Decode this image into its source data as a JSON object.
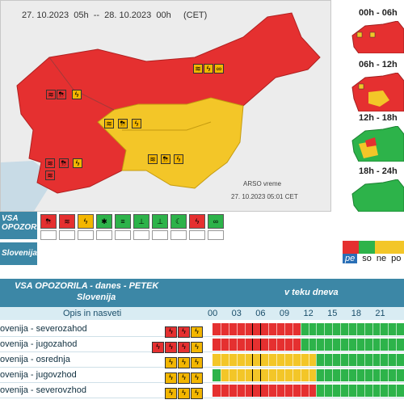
{
  "map": {
    "range_text": "27. 10.2023  05h  --  28. 10.2023  00h     (CET)",
    "credit": "ARSO vreme",
    "timestamp": "27. 10.2023  05:01  CET",
    "colors": {
      "red": "#e53030",
      "yellow": "#f3c628",
      "green": "#2db34a",
      "sea": "#c8dbe6"
    }
  },
  "mini_maps": [
    {
      "label": "00h - 06h",
      "fill": "red"
    },
    {
      "label": "06h - 12h",
      "fill": "red"
    },
    {
      "label": "12h - 18h",
      "fill": "mixed"
    },
    {
      "label": "18h - 24h",
      "fill": "green"
    }
  ],
  "legend": {
    "vsa_label": "VSA OPOZORILA",
    "region_label": "Slovenija",
    "icons": [
      {
        "name": "thunderstorm-icon",
        "color": "red",
        "glyph": "⛈"
      },
      {
        "name": "wind-icon",
        "color": "red",
        "glyph": "≋"
      },
      {
        "name": "lightning-icon",
        "color": "yellow",
        "glyph": "ϟ"
      },
      {
        "name": "snow-icon",
        "color": "green",
        "glyph": "✱"
      },
      {
        "name": "fog-icon",
        "color": "green",
        "glyph": "≡"
      },
      {
        "name": "high-temp-icon",
        "color": "green",
        "glyph": "🌡"
      },
      {
        "name": "low-temp-icon",
        "color": "green",
        "glyph": "🌡"
      },
      {
        "name": "coastal-icon",
        "color": "green",
        "glyph": "☾"
      },
      {
        "name": "wind-gust-icon",
        "color": "red",
        "glyph": "ϟ"
      },
      {
        "name": "rain-icon",
        "color": "green",
        "glyph": "∞"
      }
    ],
    "scale": [
      {
        "label": "pe",
        "color": "#e53030"
      },
      {
        "label": "so",
        "color": "#2db34a"
      },
      {
        "label": "ne",
        "color": "#f3c628"
      },
      {
        "label": "po",
        "color": "#f3c628"
      }
    ]
  },
  "table": {
    "title": "VSA OPOZORILA - danes - PETEK",
    "subtitle": "Slovenija",
    "during_label": "v teku dneva",
    "column_header": "Opis in nasveti",
    "hours": [
      "00",
      "03",
      "06",
      "09",
      "12",
      "15",
      "18",
      "21"
    ],
    "rows": [
      {
        "label": "ovenija - severozahod",
        "icons": [
          "r",
          "r",
          "y"
        ],
        "segments": [
          {
            "from": 0,
            "to": 11,
            "color": "red"
          },
          {
            "from": 11,
            "to": 24,
            "color": "green"
          }
        ]
      },
      {
        "label": "ovenija - jugozahod",
        "icons": [
          "r",
          "r",
          "r",
          "y"
        ],
        "segments": [
          {
            "from": 0,
            "to": 11,
            "color": "red"
          },
          {
            "from": 11,
            "to": 24,
            "color": "green"
          }
        ]
      },
      {
        "label": "ovenija - osrednja",
        "icons": [
          "y",
          "y",
          "y"
        ],
        "segments": [
          {
            "from": 0,
            "to": 13,
            "color": "yellow"
          },
          {
            "from": 13,
            "to": 24,
            "color": "green"
          }
        ]
      },
      {
        "label": "ovenija - jugovzhod",
        "icons": [
          "y",
          "y",
          "y"
        ],
        "segments": [
          {
            "from": 0,
            "to": 1,
            "color": "green"
          },
          {
            "from": 1,
            "to": 13,
            "color": "yellow"
          },
          {
            "from": 13,
            "to": 24,
            "color": "green"
          }
        ]
      },
      {
        "label": "ovenija - severovzhod",
        "icons": [
          "y",
          "y",
          "y"
        ],
        "segments": [
          {
            "from": 0,
            "to": 13,
            "color": "red"
          },
          {
            "from": 13,
            "to": 24,
            "color": "green"
          }
        ]
      }
    ]
  }
}
